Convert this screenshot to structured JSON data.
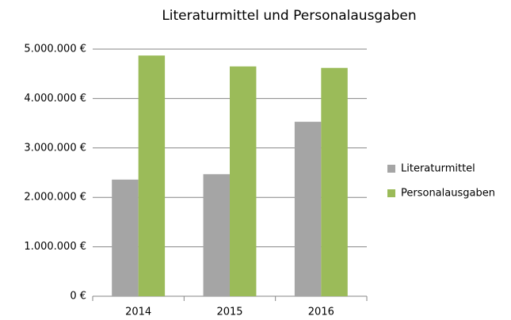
{
  "chart_data": {
    "type": "bar",
    "title": "Literaturmittel und Personalausgaben",
    "categories": [
      "2014",
      "2015",
      "2016"
    ],
    "series": [
      {
        "name": "Literaturmittel",
        "color": "#a5a5a5",
        "values": [
          2360000,
          2470000,
          3530000
        ]
      },
      {
        "name": "Personalausgaben",
        "color": "#9bbb59",
        "values": [
          4870000,
          4650000,
          4620000
        ]
      }
    ],
    "ylim": [
      0,
      5000000
    ],
    "yticks": [
      {
        "value": 0,
        "label": "0 €"
      },
      {
        "value": 1000000,
        "label": "1.000.000 €"
      },
      {
        "value": 2000000,
        "label": "2.000.000 €"
      },
      {
        "value": 3000000,
        "label": "3.000.000 €"
      },
      {
        "value": 4000000,
        "label": "4.000.000 €"
      },
      {
        "value": 5000000,
        "label": "5.000.000 €"
      }
    ],
    "grid": true,
    "legend": "right"
  }
}
